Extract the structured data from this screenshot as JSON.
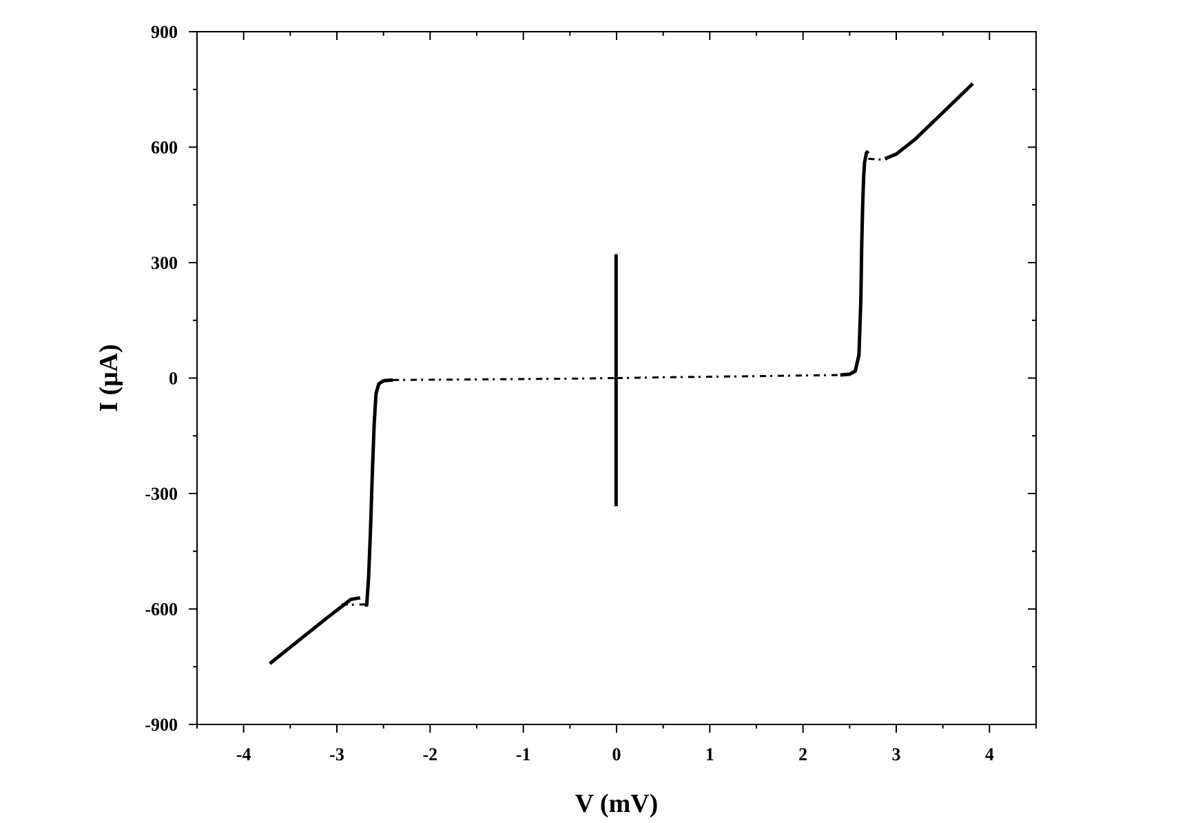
{
  "chart_data": {
    "type": "line",
    "title": "",
    "xlabel": "V (mV)",
    "ylabel": "I (μA)",
    "xlim": [
      -4.5,
      4.5
    ],
    "ylim": [
      -900,
      900
    ],
    "x_ticks": [
      -4,
      -3,
      -2,
      -1,
      0,
      1,
      2,
      3,
      4
    ],
    "x_tick_labels": [
      "-4",
      "-3",
      "-2",
      "-1",
      "0",
      "1",
      "2",
      "3",
      "4"
    ],
    "y_ticks": [
      -900,
      -600,
      -300,
      0,
      300,
      600,
      900
    ],
    "y_tick_labels": [
      "-900",
      "-600",
      "-300",
      "0",
      "300",
      "600",
      "900"
    ],
    "grid": false,
    "line_color": "#000000",
    "series": [
      {
        "style": "solid",
        "points": [
          [
            -3.72,
            -742
          ],
          [
            -3.4,
            -680
          ],
          [
            -3.1,
            -622
          ],
          [
            -2.95,
            -594
          ],
          [
            -2.85,
            -575
          ],
          [
            -2.75,
            -571
          ]
        ]
      },
      {
        "style": "dashed",
        "points": [
          [
            -2.95,
            -588
          ],
          [
            -2.8,
            -589
          ],
          [
            -2.7,
            -588
          ]
        ]
      },
      {
        "style": "solid",
        "points": [
          [
            -2.7,
            -588
          ],
          [
            -2.68,
            -590
          ],
          [
            -2.66,
            -520
          ],
          [
            -2.64,
            -400
          ],
          [
            -2.62,
            -250
          ],
          [
            -2.6,
            -120
          ],
          [
            -2.58,
            -40
          ],
          [
            -2.55,
            -15
          ],
          [
            -2.5,
            -7
          ],
          [
            -2.4,
            -5
          ]
        ]
      },
      {
        "style": "dashed",
        "points": [
          [
            -2.4,
            -5
          ],
          [
            -1.5,
            -3.5
          ],
          [
            -0.5,
            -1.5
          ],
          [
            0,
            0
          ]
        ]
      },
      {
        "style": "solid",
        "points": [
          [
            -0.005,
            322
          ],
          [
            -0.005,
            -333
          ]
        ]
      },
      {
        "style": "dashed",
        "points": [
          [
            0,
            0
          ],
          [
            0.5,
            2
          ],
          [
            1.5,
            5
          ],
          [
            2.4,
            8
          ]
        ]
      },
      {
        "style": "solid",
        "points": [
          [
            2.4,
            8
          ],
          [
            2.5,
            10
          ],
          [
            2.56,
            18
          ],
          [
            2.6,
            60
          ],
          [
            2.62,
            200
          ],
          [
            2.63,
            350
          ],
          [
            2.64,
            450
          ],
          [
            2.65,
            520
          ],
          [
            2.66,
            560
          ],
          [
            2.68,
            585
          ],
          [
            2.7,
            590
          ]
        ]
      },
      {
        "style": "dashed",
        "points": [
          [
            2.7,
            570
          ],
          [
            2.8,
            568
          ],
          [
            2.9,
            568
          ]
        ]
      },
      {
        "style": "solid",
        "points": [
          [
            2.88,
            570
          ],
          [
            3.0,
            582
          ],
          [
            3.2,
            620
          ],
          [
            3.5,
            690
          ],
          [
            3.82,
            765
          ]
        ]
      }
    ]
  }
}
